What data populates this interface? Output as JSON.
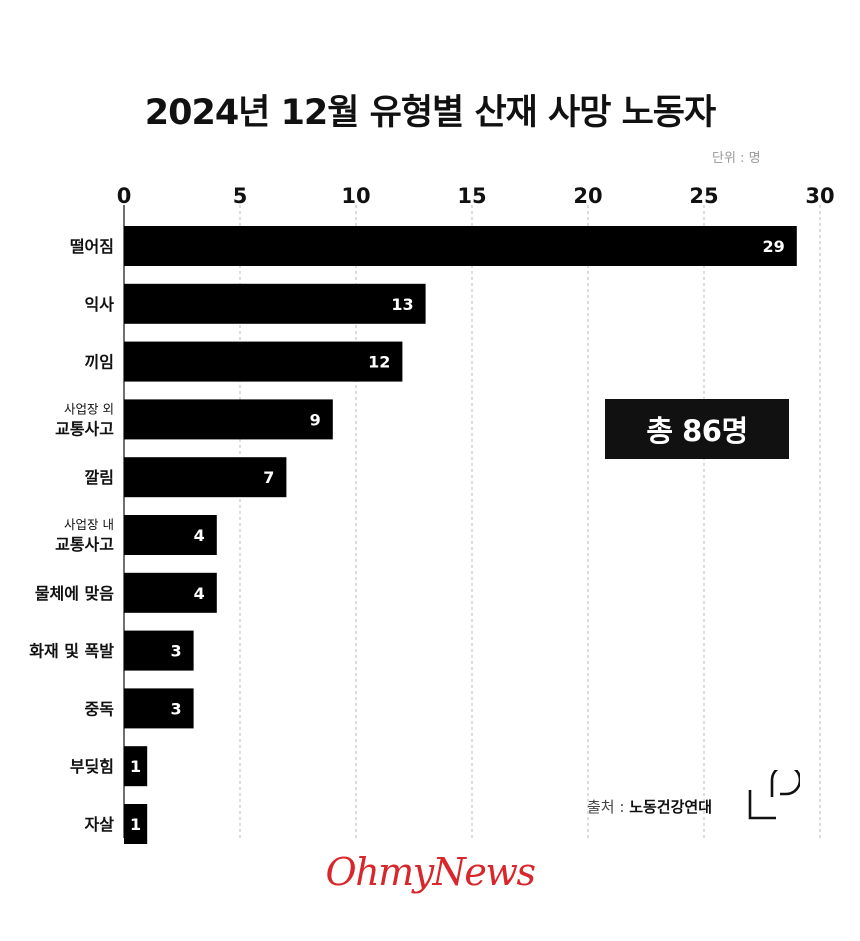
{
  "title": "2024년 12월 유형별 산재 사망 노동자",
  "unit": "단위 : 명",
  "total": "총 86명",
  "source": {
    "label": "출처 : ",
    "value": "노동건강연대"
  },
  "brand": "OhmyNews",
  "colors": {
    "bar": "#000000",
    "grid": "#bbbbbb",
    "brand": "#d9262b"
  },
  "chart_data": {
    "type": "bar",
    "orientation": "horizontal",
    "categories": [
      "떨어짐",
      "익사",
      "끼임",
      "사업장 외 교통사고",
      "깔림",
      "사업장 내 교통사고",
      "물체에 맞음",
      "화재 및 폭발",
      "중독",
      "부딪힘",
      "자살"
    ],
    "category_labels": [
      {
        "sub": "",
        "main": "떨어짐"
      },
      {
        "sub": "",
        "main": "익사"
      },
      {
        "sub": "",
        "main": "끼임"
      },
      {
        "sub": "사업장 외",
        "main": "교통사고"
      },
      {
        "sub": "",
        "main": "깔림"
      },
      {
        "sub": "사업장 내",
        "main": "교통사고"
      },
      {
        "sub": "",
        "main": "물체에 맞음"
      },
      {
        "sub": "",
        "main": "화재 및 폭발"
      },
      {
        "sub": "",
        "main": "중독"
      },
      {
        "sub": "",
        "main": "부딪힘"
      },
      {
        "sub": "",
        "main": "자살"
      }
    ],
    "values": [
      29,
      13,
      12,
      9,
      7,
      4,
      4,
      3,
      3,
      1,
      1
    ],
    "xlim": [
      0,
      30
    ],
    "xticks": [
      0,
      5,
      10,
      15,
      20,
      25,
      30
    ],
    "grid": true,
    "axis_position": "top",
    "title": "2024년 12월 유형별 산재 사망 노동자",
    "xlabel": "",
    "ylabel": ""
  }
}
